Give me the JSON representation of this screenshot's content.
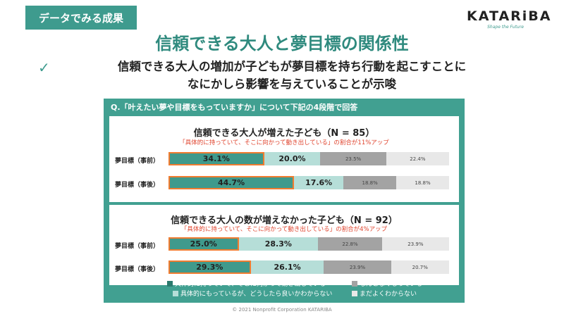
{
  "tag": "データでみる成果",
  "logo": {
    "main": "KATARiBA",
    "sub": "Shape the Future"
  },
  "title": "信頼できる大人と夢目標の関係性",
  "lead": {
    "line1": "信頼できる大人の増加が子どもが夢目標を持ち行動を起こすことに",
    "line2": "なにかしら影響を与えていることが示唆"
  },
  "icons": {
    "check": "checkmark-icon"
  },
  "question": "Q.「叶えたい夢や目標をもっていますか」について下記の4段階で回答",
  "colors": {
    "teal": "#3e9b8e",
    "s1": "#3f9a8c",
    "s2": "#b6ded8",
    "s3": "#a3a3a3",
    "s4": "#e8e8e8",
    "highlight": "#f07c30"
  },
  "chart_data": {
    "type": "bar",
    "orientation": "horizontal-stacked-100",
    "legend": [
      "具体的に持っていて、そこに向かって動き出している",
      "なんとなくもっている",
      "具体的にもっているが、どうしたら良いかわからない",
      "まだよくわからない"
    ],
    "groups": [
      {
        "title": "信頼できる大人が増えた子ども（N = 85）",
        "subtitle": "「具体的に持っていて、そこに向かって動き出している」の割合が11%アップ",
        "rows": [
          {
            "label": "夢目標（事前）",
            "values": [
              34.1,
              20.0,
              23.5,
              22.4
            ],
            "display": [
              "34.1%",
              "20.0%",
              "23.5%",
              "22.4%"
            ]
          },
          {
            "label": "夢目標（事後）",
            "values": [
              44.7,
              17.6,
              18.8,
              18.8
            ],
            "display": [
              "44.7%",
              "17.6%",
              "18.8%",
              "18.8%"
            ]
          }
        ]
      },
      {
        "title": "信頼できる大人の数が増えなかった子ども（N = 92）",
        "subtitle": "「具体的に持っていて、そこに向かって動き出している」の割合が4%アップ",
        "rows": [
          {
            "label": "夢目標（事前）",
            "values": [
              25.0,
              28.3,
              22.8,
              23.9
            ],
            "display": [
              "25.0%",
              "28.3%",
              "22.8%",
              "23.9%"
            ]
          },
          {
            "label": "夢目標（事後）",
            "values": [
              29.3,
              26.1,
              23.9,
              20.7
            ],
            "display": [
              "29.3%",
              "26.1%",
              "23.9%",
              "20.7%"
            ]
          }
        ]
      }
    ]
  },
  "copyright": "© 2021 Nonprofit Corporation KATARIBA"
}
